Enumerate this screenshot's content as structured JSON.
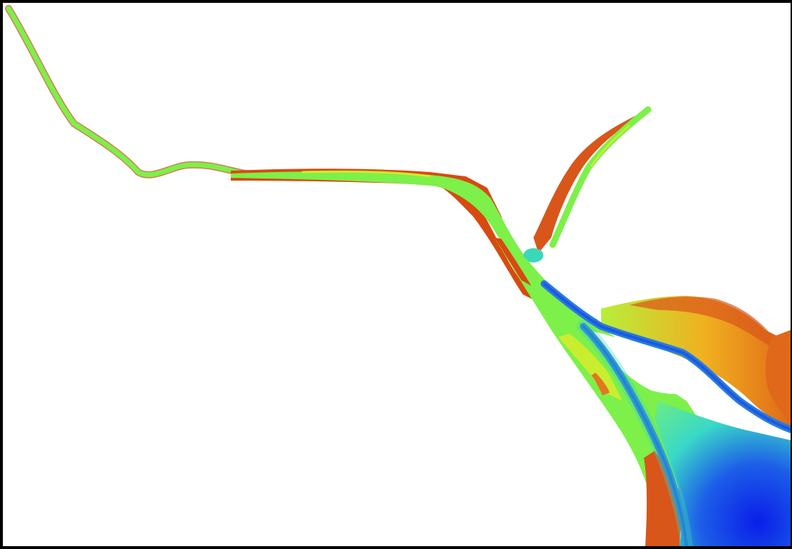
{
  "colors": {
    "background": "#ffffff",
    "frame": "#000000",
    "bank_high": "#d84a10",
    "bank_mid": "#e07820",
    "shallow": "#7df04a",
    "shallow_yellow": "#d8ec2c",
    "mid": "#3ad8b8",
    "deep": "#2a7be0",
    "deepest": "#0a2ee8"
  },
  "legend": {}
}
